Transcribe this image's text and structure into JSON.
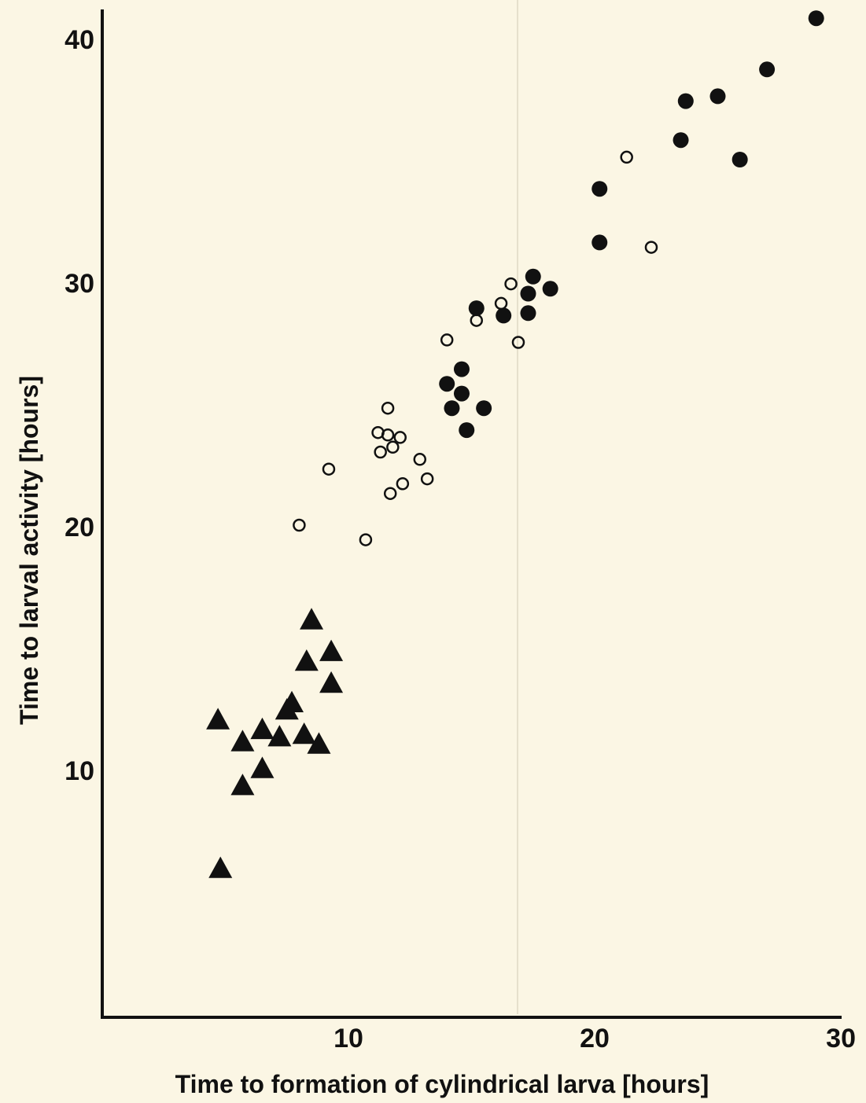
{
  "chart_data": {
    "type": "scatter",
    "xlabel": "Time to formation of cylindrical larva [hours]",
    "ylabel": "Time to larval activity [hours]",
    "xlim": [
      0,
      30
    ],
    "ylim": [
      0,
      41
    ],
    "x_ticks": [
      "10",
      "20",
      "30"
    ],
    "y_ticks": [
      "10",
      "20",
      "30",
      "40"
    ],
    "grid": false,
    "legend": "none",
    "series": [
      {
        "marker": "filled-triangle",
        "color": "#111111",
        "points": [
          [
            4.7,
            12.0
          ],
          [
            5.7,
            11.1
          ],
          [
            5.7,
            9.3
          ],
          [
            6.5,
            11.6
          ],
          [
            6.5,
            10.0
          ],
          [
            7.2,
            11.3
          ],
          [
            7.5,
            12.4
          ],
          [
            7.7,
            12.7
          ],
          [
            8.2,
            11.4
          ],
          [
            8.3,
            14.4
          ],
          [
            8.5,
            16.1
          ],
          [
            8.8,
            11.0
          ],
          [
            9.3,
            13.5
          ],
          [
            9.3,
            14.8
          ],
          [
            4.8,
            5.9
          ]
        ]
      },
      {
        "marker": "open-circle",
        "color": "#111111",
        "points": [
          [
            8.0,
            20.0
          ],
          [
            9.2,
            22.3
          ],
          [
            10.7,
            19.4
          ],
          [
            11.2,
            23.8
          ],
          [
            11.3,
            23.0
          ],
          [
            11.6,
            24.8
          ],
          [
            11.6,
            23.7
          ],
          [
            11.8,
            23.2
          ],
          [
            12.1,
            23.6
          ],
          [
            11.7,
            21.3
          ],
          [
            12.2,
            21.7
          ],
          [
            12.9,
            22.7
          ],
          [
            13.2,
            21.9
          ],
          [
            14.0,
            27.6
          ],
          [
            15.2,
            28.4
          ],
          [
            16.2,
            29.1
          ],
          [
            16.6,
            29.9
          ],
          [
            16.9,
            27.5
          ],
          [
            21.3,
            35.1
          ],
          [
            22.3,
            31.4
          ]
        ]
      },
      {
        "marker": "filled-circle",
        "color": "#111111",
        "points": [
          [
            14.0,
            25.8
          ],
          [
            14.2,
            24.8
          ],
          [
            14.6,
            25.4
          ],
          [
            14.6,
            26.4
          ],
          [
            14.8,
            23.9
          ],
          [
            15.5,
            24.8
          ],
          [
            15.2,
            28.9
          ],
          [
            16.3,
            28.6
          ],
          [
            17.3,
            28.7
          ],
          [
            17.3,
            29.5
          ],
          [
            17.5,
            30.2
          ],
          [
            18.2,
            29.7
          ],
          [
            20.2,
            33.8
          ],
          [
            20.2,
            31.6
          ],
          [
            23.5,
            35.8
          ],
          [
            23.7,
            37.4
          ],
          [
            25.0,
            37.6
          ],
          [
            25.9,
            35.0
          ],
          [
            27.0,
            38.7
          ],
          [
            29.0,
            40.8
          ]
        ]
      }
    ]
  }
}
